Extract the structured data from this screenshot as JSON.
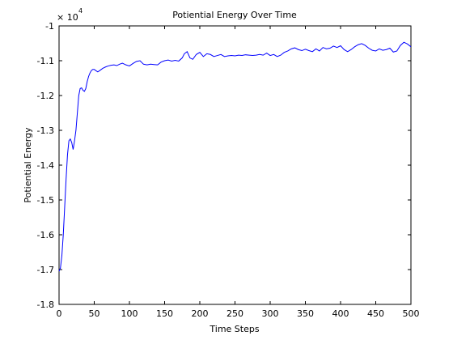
{
  "chart_data": {
    "type": "line",
    "title": "Potiential Energy Over Time",
    "xlabel": "Time Steps",
    "ylabel": "Potiential Energy",
    "y_multiplier": {
      "base": "× 10",
      "exponent": "4"
    },
    "xlim": [
      0,
      500
    ],
    "ylim": [
      -1.8,
      -1.0
    ],
    "xticks": [
      0,
      50,
      100,
      150,
      200,
      250,
      300,
      350,
      400,
      450,
      500
    ],
    "yticks": [
      -1.8,
      -1.7,
      -1.6,
      -1.5,
      -1.4,
      -1.3,
      -1.2,
      -1.1,
      -1.0
    ],
    "xtick_labels": [
      "0",
      "50",
      "100",
      "150",
      "200",
      "250",
      "300",
      "350",
      "400",
      "450",
      "500"
    ],
    "ytick_labels": [
      "-1.8",
      "-1.7",
      "-1.6",
      "-1.5",
      "-1.4",
      "-1.3",
      "-1.2",
      "-1.1",
      "-1"
    ],
    "grid": false,
    "line_color": "#0000ff",
    "series": [
      {
        "x": [
          0,
          2,
          4,
          6,
          8,
          10,
          12,
          14,
          16,
          18,
          20,
          22,
          24,
          26,
          28,
          30,
          32,
          34,
          36,
          38,
          40,
          42,
          44,
          46,
          48,
          50,
          52,
          55,
          58,
          62,
          66,
          70,
          74,
          78,
          82,
          86,
          90,
          95,
          100,
          105,
          110,
          115,
          120,
          125,
          130,
          135,
          140,
          145,
          150,
          155,
          160,
          165,
          170,
          175,
          178,
          182,
          186,
          190,
          195,
          200,
          205,
          210,
          215,
          220,
          225,
          230,
          235,
          240,
          245,
          250,
          255,
          260,
          265,
          270,
          275,
          280,
          285,
          290,
          295,
          300,
          305,
          310,
          315,
          320,
          325,
          330,
          335,
          340,
          345,
          350,
          355,
          360,
          365,
          370,
          375,
          380,
          385,
          390,
          395,
          400,
          405,
          410,
          415,
          420,
          425,
          430,
          435,
          440,
          445,
          450,
          455,
          460,
          465,
          470,
          475,
          480,
          485,
          490,
          495,
          500
        ],
        "y": [
          -1.705,
          -1.695,
          -1.66,
          -1.6,
          -1.52,
          -1.44,
          -1.37,
          -1.33,
          -1.325,
          -1.335,
          -1.355,
          -1.33,
          -1.3,
          -1.25,
          -1.2,
          -1.18,
          -1.178,
          -1.185,
          -1.188,
          -1.18,
          -1.16,
          -1.145,
          -1.135,
          -1.128,
          -1.125,
          -1.125,
          -1.128,
          -1.132,
          -1.128,
          -1.122,
          -1.118,
          -1.115,
          -1.113,
          -1.112,
          -1.114,
          -1.11,
          -1.107,
          -1.112,
          -1.115,
          -1.108,
          -1.102,
          -1.1,
          -1.11,
          -1.112,
          -1.11,
          -1.111,
          -1.112,
          -1.104,
          -1.1,
          -1.098,
          -1.101,
          -1.099,
          -1.101,
          -1.092,
          -1.08,
          -1.074,
          -1.092,
          -1.096,
          -1.082,
          -1.076,
          -1.088,
          -1.08,
          -1.082,
          -1.088,
          -1.085,
          -1.082,
          -1.088,
          -1.086,
          -1.085,
          -1.086,
          -1.084,
          -1.085,
          -1.083,
          -1.084,
          -1.085,
          -1.084,
          -1.082,
          -1.084,
          -1.078,
          -1.085,
          -1.082,
          -1.088,
          -1.084,
          -1.076,
          -1.072,
          -1.066,
          -1.063,
          -1.068,
          -1.071,
          -1.067,
          -1.071,
          -1.074,
          -1.066,
          -1.072,
          -1.062,
          -1.066,
          -1.064,
          -1.058,
          -1.062,
          -1.057,
          -1.068,
          -1.074,
          -1.068,
          -1.06,
          -1.054,
          -1.051,
          -1.056,
          -1.064,
          -1.07,
          -1.072,
          -1.066,
          -1.07,
          -1.068,
          -1.064,
          -1.075,
          -1.072,
          -1.056,
          -1.047,
          -1.052,
          -1.06
        ]
      }
    ]
  }
}
